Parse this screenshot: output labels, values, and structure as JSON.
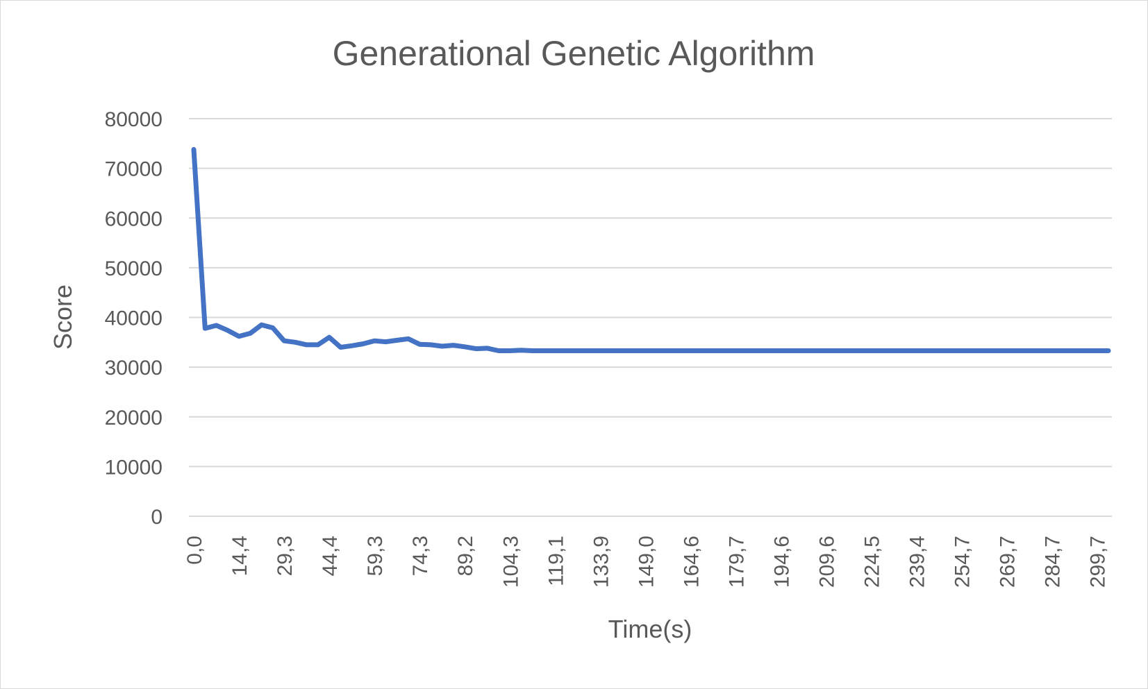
{
  "chart_data": {
    "type": "line",
    "title": "Generational Genetic Algorithm",
    "xlabel": "Time(s)",
    "ylabel": "Score",
    "ylim": [
      0,
      80000
    ],
    "y_ticks": [
      "0",
      "10000",
      "20000",
      "30000",
      "40000",
      "50000",
      "60000",
      "70000",
      "80000"
    ],
    "x_tick_labels": [
      "0,0",
      "14,4",
      "29,3",
      "44,4",
      "59,3",
      "74,3",
      "89,2",
      "104,3",
      "119,1",
      "133,9",
      "149,0",
      "164,6",
      "179,7",
      "194,6",
      "209,6",
      "224,5",
      "239,4",
      "254,7",
      "269,7",
      "284,7",
      "299,7"
    ],
    "x_tick_every": 4,
    "grid": "horizontal",
    "legend": "none",
    "line_color": "#4472c4",
    "series": [
      {
        "values": [
          73800,
          37800,
          38400,
          37400,
          36200,
          36800,
          38500,
          37900,
          35300,
          35000,
          34500,
          34500,
          36000,
          34000,
          34300,
          34700,
          35300,
          35100,
          35400,
          35700,
          34600,
          34500,
          34200,
          34400,
          34100,
          33700,
          33800,
          33300,
          33300,
          33400,
          33300,
          33300,
          33300,
          33300,
          33300,
          33300,
          33300,
          33300,
          33300,
          33300,
          33300,
          33300,
          33300,
          33300,
          33300,
          33300,
          33300,
          33300,
          33300,
          33300,
          33300,
          33300,
          33300,
          33300,
          33300,
          33300,
          33300,
          33300,
          33300,
          33300,
          33300,
          33300,
          33300,
          33300,
          33300,
          33300,
          33300,
          33300,
          33300,
          33300,
          33300,
          33300,
          33300,
          33300,
          33300,
          33300,
          33300,
          33300,
          33300,
          33300,
          33300,
          33300
        ]
      }
    ]
  }
}
